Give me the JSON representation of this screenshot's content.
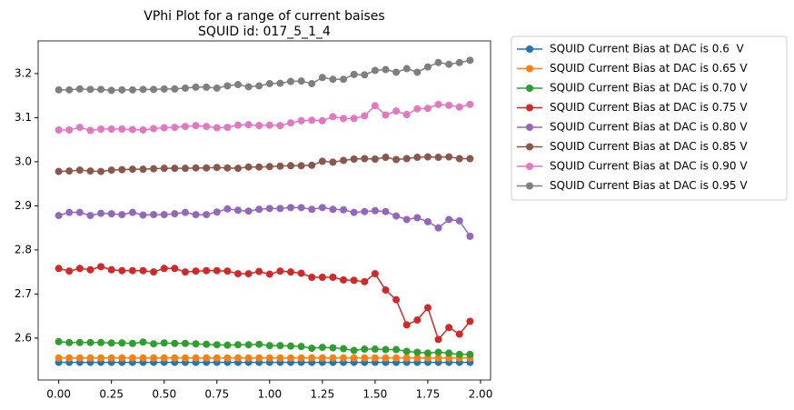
{
  "chart_data": {
    "type": "line",
    "title": "VPhi Plot for a range of current baises",
    "subtitle": "SQUID id: 017_5_1_4",
    "x": [
      0,
      0.05,
      0.1,
      0.15,
      0.2,
      0.25,
      0.3,
      0.35,
      0.4,
      0.45,
      0.5,
      0.55,
      0.6,
      0.65,
      0.7,
      0.75,
      0.8,
      0.85,
      0.9,
      0.95,
      1.0,
      1.05,
      1.1,
      1.15,
      1.2,
      1.25,
      1.3,
      1.35,
      1.4,
      1.45,
      1.5,
      1.55,
      1.6,
      1.65,
      1.7,
      1.75,
      1.8,
      1.85,
      1.9,
      1.95
    ],
    "xlim": [
      -0.0975,
      2.0475
    ],
    "xticks": [
      {
        "value": 0,
        "label": "0.00"
      },
      {
        "value": 0.25,
        "label": "0.25"
      },
      {
        "value": 0.5,
        "label": "0.50"
      },
      {
        "value": 0.75,
        "label": "0.75"
      },
      {
        "value": 1,
        "label": "1.00"
      },
      {
        "value": 1.25,
        "label": "1.25"
      },
      {
        "value": 1.5,
        "label": "1.50"
      },
      {
        "value": 1.75,
        "label": "1.75"
      },
      {
        "value": 2,
        "label": "2.00"
      }
    ],
    "ylim": [
      2.505,
      3.274
    ],
    "yticks": [
      2.6,
      2.7,
      2.8,
      2.9,
      {
        "value": 3,
        "label": "3.0"
      },
      3.1,
      3.2
    ],
    "legend": "outside upper right",
    "series": [
      {
        "name": "SQUID Current Bias at DAC is 0.6  V",
        "color": "#1f77b4",
        "values": [
          2.545,
          2.545,
          2.545,
          2.545,
          2.545,
          2.545,
          2.545,
          2.545,
          2.545,
          2.545,
          2.545,
          2.545,
          2.545,
          2.545,
          2.545,
          2.545,
          2.545,
          2.545,
          2.545,
          2.545,
          2.545,
          2.545,
          2.545,
          2.545,
          2.545,
          2.545,
          2.545,
          2.545,
          2.545,
          2.545,
          2.545,
          2.545,
          2.545,
          2.545,
          2.545,
          2.545,
          2.545,
          2.545,
          2.545,
          2.545
        ]
      },
      {
        "name": "SQUID Current Bias at DAC is 0.65 V",
        "color": "#ff7f0e",
        "values": [
          2.555,
          2.555,
          2.555,
          2.555,
          2.555,
          2.555,
          2.555,
          2.555,
          2.555,
          2.555,
          2.555,
          2.555,
          2.555,
          2.555,
          2.555,
          2.555,
          2.555,
          2.555,
          2.555,
          2.555,
          2.555,
          2.555,
          2.555,
          2.555,
          2.555,
          2.555,
          2.555,
          2.555,
          2.555,
          2.555,
          2.555,
          2.555,
          2.555,
          2.555,
          2.555,
          2.555,
          2.555,
          2.555,
          2.555,
          2.555
        ]
      },
      {
        "name": "SQUID Current Bias at DAC is 0.70 V",
        "color": "#2ca02c",
        "values": [
          2.592,
          2.59,
          2.59,
          2.59,
          2.59,
          2.589,
          2.589,
          2.588,
          2.591,
          2.587,
          2.589,
          2.588,
          2.588,
          2.587,
          2.586,
          2.585,
          2.584,
          2.585,
          2.585,
          2.586,
          2.583,
          2.583,
          2.582,
          2.581,
          2.577,
          2.579,
          2.578,
          2.576,
          2.572,
          2.575,
          2.575,
          2.574,
          2.574,
          2.57,
          2.568,
          2.566,
          2.568,
          2.566,
          2.563,
          2.563
        ]
      },
      {
        "name": "SQUID Current Bias at DAC is 0.75 V",
        "color": "#d62728",
        "values": [
          2.758,
          2.752,
          2.758,
          2.755,
          2.762,
          2.755,
          2.753,
          2.753,
          2.753,
          2.75,
          2.758,
          2.758,
          2.75,
          2.752,
          2.753,
          2.753,
          2.752,
          2.746,
          2.746,
          2.751,
          2.745,
          2.752,
          2.75,
          2.747,
          2.738,
          2.738,
          2.738,
          2.732,
          2.731,
          2.728,
          2.746,
          2.709,
          2.687,
          2.63,
          2.641,
          2.669,
          2.597,
          2.624,
          2.609,
          2.638
        ]
      },
      {
        "name": "SQUID Current Bias at DAC is 0.80 V",
        "color": "#9467bd",
        "values": [
          2.878,
          2.885,
          2.885,
          2.878,
          2.883,
          2.882,
          2.88,
          2.885,
          2.879,
          2.88,
          2.88,
          2.882,
          2.885,
          2.88,
          2.88,
          2.886,
          2.893,
          2.89,
          2.888,
          2.892,
          2.894,
          2.894,
          2.896,
          2.896,
          2.892,
          2.896,
          2.892,
          2.891,
          2.885,
          2.887,
          2.889,
          2.887,
          2.877,
          2.869,
          2.873,
          2.864,
          2.85,
          2.869,
          2.866,
          2.831
        ]
      },
      {
        "name": "SQUID Current Bias at DAC is 0.85 V",
        "color": "#8c564b",
        "values": [
          2.978,
          2.979,
          2.981,
          2.979,
          2.978,
          2.981,
          2.982,
          2.983,
          2.983,
          2.984,
          2.985,
          2.985,
          2.985,
          2.986,
          2.986,
          2.987,
          2.986,
          2.985,
          2.988,
          2.988,
          2.989,
          2.99,
          2.991,
          2.991,
          2.992,
          3.001,
          2.999,
          3.003,
          3.006,
          3.007,
          3.006,
          3.01,
          3.005,
          3.007,
          3.01,
          3.011,
          3.01,
          3.011,
          3.007,
          3.007
        ]
      },
      {
        "name": "SQUID Current Bias at DAC is 0.90 V",
        "color": "#e377c2",
        "values": [
          3.072,
          3.072,
          3.078,
          3.071,
          3.074,
          3.074,
          3.074,
          3.073,
          3.072,
          3.075,
          3.077,
          3.078,
          3.08,
          3.082,
          3.08,
          3.077,
          3.078,
          3.083,
          3.084,
          3.082,
          3.083,
          3.082,
          3.088,
          3.093,
          3.094,
          3.093,
          3.102,
          3.098,
          3.098,
          3.104,
          3.127,
          3.106,
          3.115,
          3.107,
          3.12,
          3.121,
          3.13,
          3.128,
          3.124,
          3.13
        ]
      },
      {
        "name": "SQUID Current Bias at DAC is 0.95 V",
        "color": "#7f7f7f",
        "values": [
          3.163,
          3.163,
          3.165,
          3.164,
          3.164,
          3.162,
          3.163,
          3.163,
          3.164,
          3.164,
          3.165,
          3.165,
          3.167,
          3.169,
          3.169,
          3.167,
          3.172,
          3.175,
          3.17,
          3.172,
          3.177,
          3.178,
          3.182,
          3.183,
          3.177,
          3.191,
          3.187,
          3.187,
          3.198,
          3.197,
          3.207,
          3.209,
          3.203,
          3.211,
          3.203,
          3.215,
          3.225,
          3.221,
          3.225,
          3.23
        ]
      }
    ]
  }
}
